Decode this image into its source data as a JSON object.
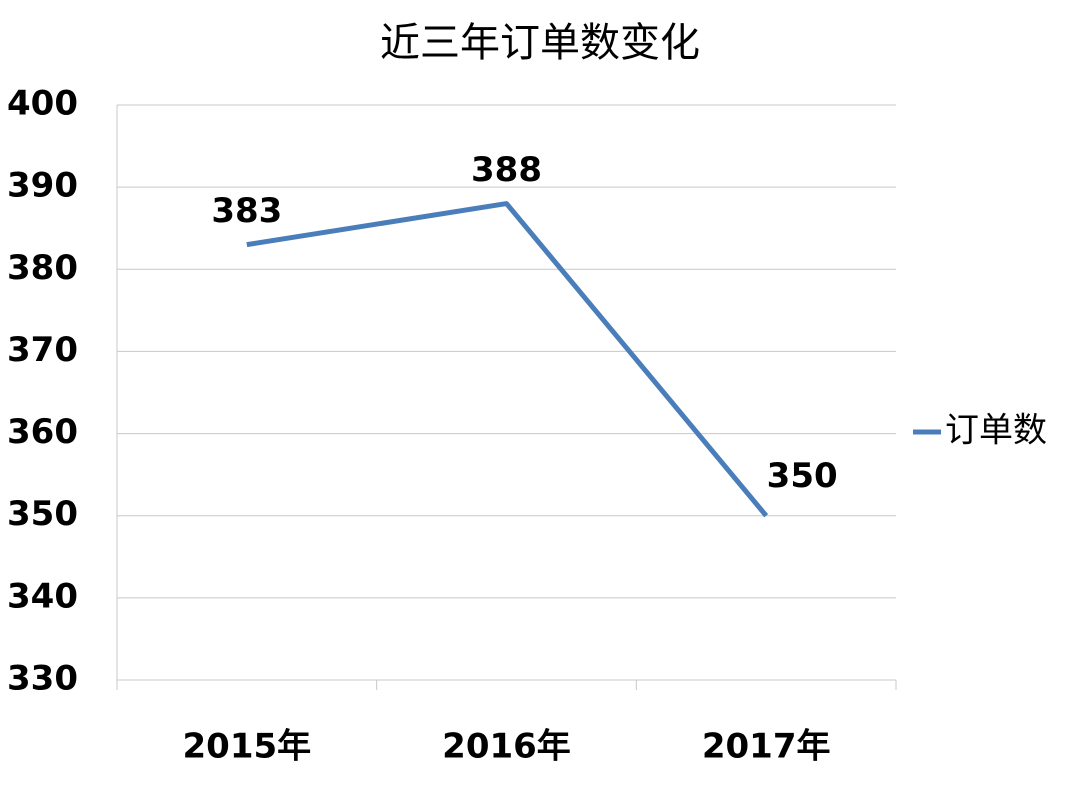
{
  "chart_data": {
    "type": "line",
    "title": "近三年订单数变化",
    "categories": [
      "2015年",
      "2016年",
      "2017年"
    ],
    "series": [
      {
        "name": "订单数",
        "color": "#4a7ebb",
        "values": [
          383,
          388,
          350
        ]
      }
    ],
    "ylim": [
      330,
      400
    ],
    "yticks": [
      330,
      340,
      350,
      360,
      370,
      380,
      390,
      400
    ],
    "grid": true,
    "legend": "right",
    "data_labels": true
  }
}
